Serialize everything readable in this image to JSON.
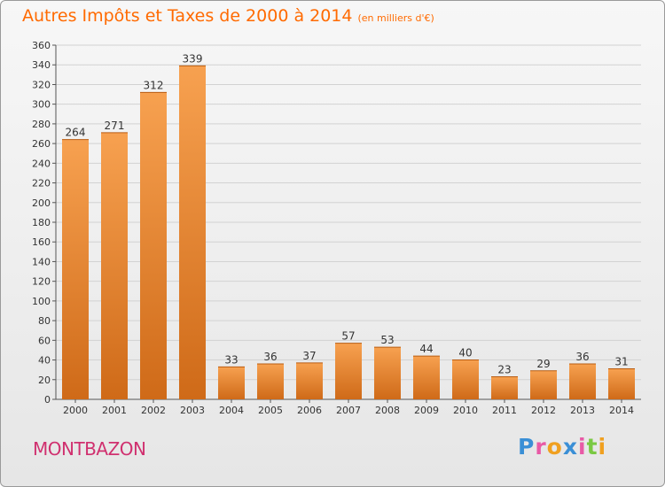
{
  "title": "Autres Impôts et Taxes de 2000 à 2014",
  "subtitle": "(en milliers d'€)",
  "location": "MONTBAZON",
  "logo": {
    "text": "Proxiti",
    "colors": [
      "#3a8fd6",
      "#e85aa6",
      "#f0a020",
      "#3a8fd6",
      "#e85aa6",
      "#7ac943",
      "#f0a020"
    ]
  },
  "colors": {
    "title": "#ff6a00",
    "location": "#d0306f",
    "bar_light": "#f7a150",
    "bar_dark": "#cf6a18"
  },
  "chart_data": {
    "type": "bar",
    "categories": [
      "2000",
      "2001",
      "2002",
      "2003",
      "2004",
      "2005",
      "2006",
      "2007",
      "2008",
      "2009",
      "2010",
      "2011",
      "2012",
      "2013",
      "2014"
    ],
    "values": [
      264,
      271,
      312,
      339,
      33,
      36,
      37,
      57,
      53,
      44,
      40,
      23,
      29,
      36,
      31
    ],
    "data_labels": [
      "264",
      "271",
      "312",
      "339",
      "33",
      "36",
      "37",
      "57",
      "53",
      "44",
      "40",
      "23",
      "29",
      "36",
      "31"
    ],
    "ylim": [
      0,
      360
    ],
    "yticks": [
      0,
      20,
      40,
      60,
      80,
      100,
      120,
      140,
      160,
      180,
      200,
      220,
      240,
      260,
      280,
      300,
      320,
      340,
      360
    ],
    "ytick_labels": [
      "0",
      "20",
      "40",
      "60",
      "80",
      "100",
      "120",
      "140",
      "160",
      "180",
      "200",
      "220",
      "240",
      "260",
      "280",
      "300",
      "320",
      "340",
      "360"
    ],
    "grid": true,
    "legend": "none"
  }
}
